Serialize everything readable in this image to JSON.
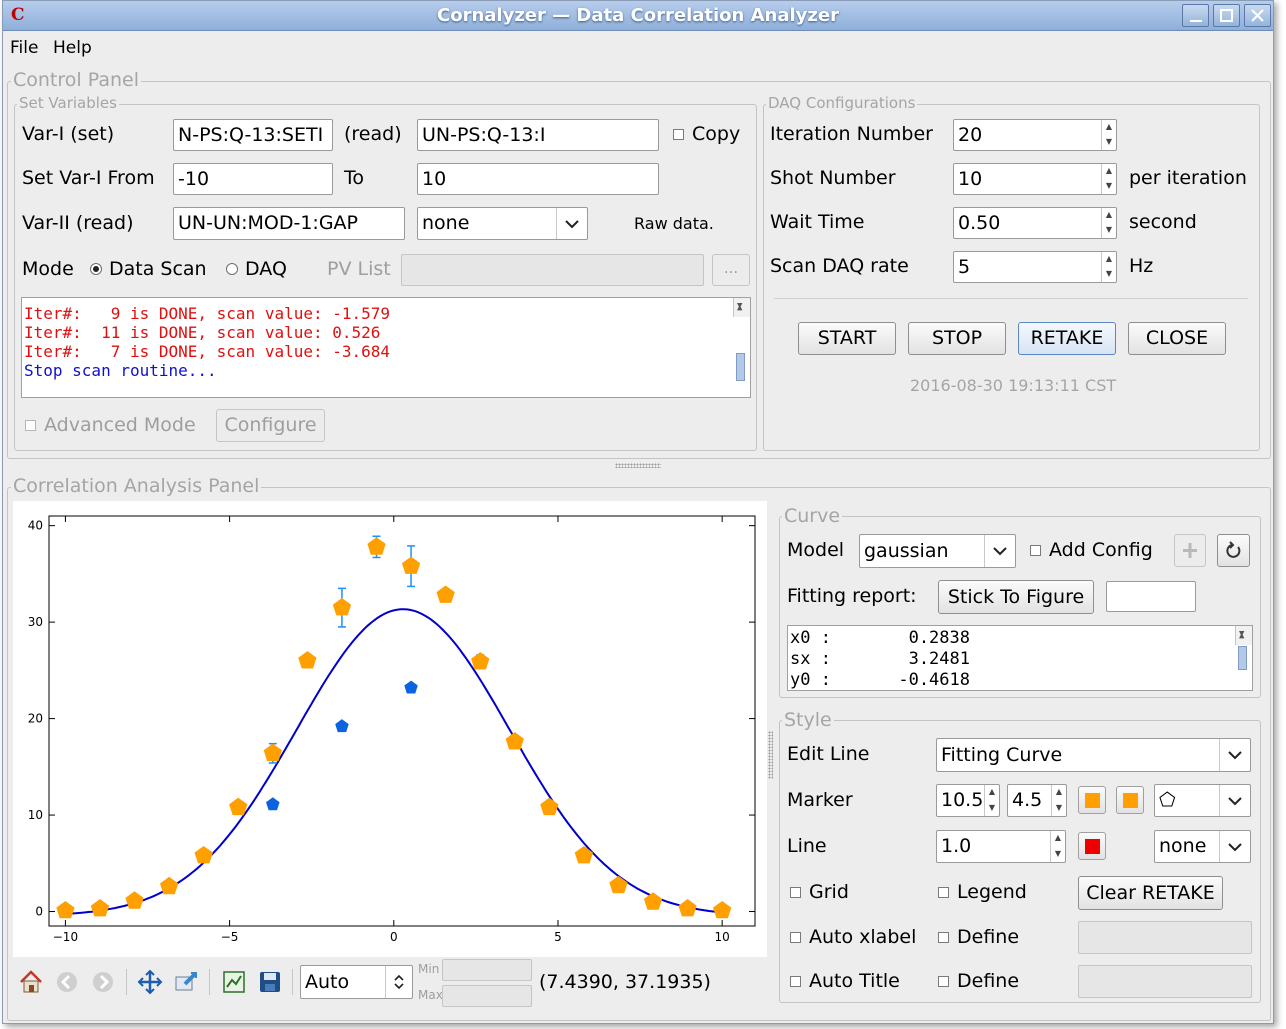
{
  "window": {
    "title": "Cornalyzer — Data Correlation Analyzer",
    "app_icon": "C"
  },
  "menu": {
    "file": "File",
    "help": "Help"
  },
  "control_panel": {
    "title": "Control Panel",
    "set_variables": {
      "title": "Set Variables",
      "var1_set_label": "Var-I (set)",
      "var1_set_value": "N-PS:Q-13:SETI",
      "read_label": "(read)",
      "var1_read_value": "UN-PS:Q-13:I",
      "copy_label": "Copy",
      "copy_checked": false,
      "from_label": "Set Var-I From",
      "from_value": "-10",
      "to_label": "To",
      "to_value": "10",
      "var2_label": "Var-II (read)",
      "var2_value": "UN-UN:MOD-1:GAP",
      "var2_select": "none",
      "raw_data_label": "Raw data.",
      "mode_label": "Mode",
      "mode_data_scan": "Data Scan",
      "mode_daq": "DAQ",
      "mode_selected": "Data Scan",
      "pv_list_label": "PV List",
      "pv_list_value": "",
      "browse_label": "...",
      "log": [
        {
          "text": "Iter#:   9 is DONE, scan value: -1.579",
          "color": "#e01010"
        },
        {
          "text": "Iter#:  11 is DONE, scan value: 0.526",
          "color": "#e01010"
        },
        {
          "text": "Iter#:   7 is DONE, scan value: -3.684",
          "color": "#e01010"
        },
        {
          "text": "Stop scan routine...",
          "color": "#1010d0"
        }
      ],
      "advanced_mode_label": "Advanced Mode",
      "configure_label": "Configure"
    },
    "daq": {
      "title": "DAQ Configurations",
      "iteration_label": "Iteration Number",
      "iteration_value": "20",
      "shot_label": "Shot Number",
      "shot_value": "10",
      "shot_unit": "per iteration",
      "wait_label": "Wait Time",
      "wait_value": "0.50",
      "wait_unit": "second",
      "rate_label": "Scan DAQ rate",
      "rate_value": "5",
      "rate_unit": "Hz",
      "start": "START",
      "stop": "STOP",
      "retake": "RETAKE",
      "close": "CLOSE",
      "timestamp": "2016-08-30 19:13:11 CST"
    }
  },
  "analysis_panel": {
    "title": "Correlation Analysis Panel",
    "toolbar": {
      "zoom_mode": "Auto",
      "min_label": "Min",
      "max_label": "Max",
      "min_value": "",
      "max_value": "",
      "cursor_readout": "(7.4390, 37.1935)"
    },
    "curve": {
      "title": "Curve",
      "model_label": "Model",
      "model_value": "gaussian",
      "add_config_label": "Add Config",
      "fitting_report_label": "Fitting report:",
      "stick_label": "Stick To Figure",
      "stick_input": "",
      "report": [
        {
          "name": "x0 :",
          "value": "0.2838"
        },
        {
          "name": "sx :",
          "value": "3.2481"
        },
        {
          "name": "y0 :",
          "value": "-0.4618"
        }
      ]
    },
    "style": {
      "title": "Style",
      "edit_line_label": "Edit Line",
      "edit_line_value": "Fitting Curve",
      "marker_label": "Marker",
      "marker_size": "10.5",
      "marker_width": "4.5",
      "marker_face_color": "#ff9f00",
      "marker_edge_color": "#ff9f00",
      "marker_shape": "⬠",
      "line_label": "Line",
      "line_width": "1.0",
      "line_color": "#ee0000",
      "line_style": "none",
      "grid_label": "Grid",
      "legend_label": "Legend",
      "clear_retake_label": "Clear RETAKE",
      "auto_xlabel_label": "Auto xlabel",
      "define_label": "Define",
      "auto_title_label": "Auto Title",
      "xlabel_value": "",
      "title_value": ""
    }
  },
  "chart_data": {
    "type": "scatter",
    "title": "",
    "xlabel": "",
    "ylabel": "",
    "xlim": [
      -10.5,
      11
    ],
    "ylim": [
      -1.5,
      41
    ],
    "xticks": [
      -10,
      -5,
      0,
      5,
      10
    ],
    "yticks": [
      0,
      10,
      20,
      30,
      40
    ],
    "grid": false,
    "series": [
      {
        "kind": "markers_errorbars",
        "color": "#ff9f00",
        "error_color": "#1e90ff",
        "points": [
          {
            "x": -10.0,
            "y": 0.1,
            "err": 0.2
          },
          {
            "x": -8.947,
            "y": 0.3,
            "err": 0.2
          },
          {
            "x": -7.895,
            "y": 1.1,
            "err": 0.2
          },
          {
            "x": -6.842,
            "y": 2.6,
            "err": 0.2
          },
          {
            "x": -5.789,
            "y": 5.8,
            "err": 0.2
          },
          {
            "x": -4.737,
            "y": 10.8,
            "err": 0.2
          },
          {
            "x": -3.684,
            "y": 16.4,
            "err": 1.0
          },
          {
            "x": -2.632,
            "y": 26.0,
            "err": 0.3
          },
          {
            "x": -1.579,
            "y": 31.5,
            "err": 2.0
          },
          {
            "x": -0.526,
            "y": 37.8,
            "err": 1.1
          },
          {
            "x": 0.526,
            "y": 35.8,
            "err": 2.1
          },
          {
            "x": 1.579,
            "y": 32.8,
            "err": 0.6
          },
          {
            "x": 2.632,
            "y": 25.9,
            "err": 0.7
          },
          {
            "x": 3.684,
            "y": 17.6,
            "err": 0.2
          },
          {
            "x": 4.737,
            "y": 10.8,
            "err": 0.2
          },
          {
            "x": 5.789,
            "y": 5.8,
            "err": 0.2
          },
          {
            "x": 6.842,
            "y": 2.7,
            "err": 0.2
          },
          {
            "x": 7.895,
            "y": 1.0,
            "err": 0.2
          },
          {
            "x": 8.947,
            "y": 0.3,
            "err": 0.2
          },
          {
            "x": 10.0,
            "y": 0.1,
            "err": 0.2
          }
        ]
      },
      {
        "kind": "retake_markers",
        "color": "#0b63e0",
        "points": [
          {
            "x": -3.684,
            "y": 11.1
          },
          {
            "x": -1.579,
            "y": 19.2
          },
          {
            "x": 0.526,
            "y": 23.2
          }
        ]
      },
      {
        "kind": "fit_curve",
        "model": "gaussian",
        "color": "#0000cc",
        "amplitude": 31.8,
        "x0": 0.2838,
        "sx": 3.2481,
        "y0": -0.4618
      }
    ]
  }
}
